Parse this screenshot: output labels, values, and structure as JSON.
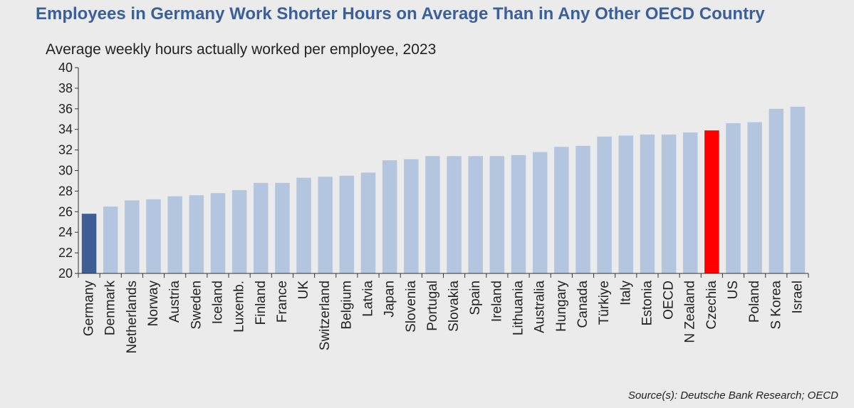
{
  "header": {
    "title": "Employees in Germany Work Shorter Hours on Average Than in Any Other OECD Country"
  },
  "footer": {
    "source": "Source(s): Deutsche Bank Research; OECD"
  },
  "chart_data": {
    "type": "bar",
    "title": "Employees in Germany Work Shorter Hours on Average Than in Any Other OECD Country",
    "subtitle": "Average weekly hours actually worked per employee, 2023",
    "xlabel": "",
    "ylabel": "",
    "ylim": [
      20,
      40
    ],
    "yticks": [
      20,
      22,
      24,
      26,
      28,
      30,
      32,
      34,
      36,
      38,
      40
    ],
    "grid": false,
    "legend": "none",
    "categories": [
      "Germany",
      "Denmark",
      "Netherlands",
      "Norway",
      "Austria",
      "Sweden",
      "Iceland",
      "Luxemb.",
      "Finland",
      "France",
      "UK",
      "Switzerland",
      "Belgium",
      "Latvia",
      "Japan",
      "Slovenia",
      "Portugal",
      "Slovakia",
      "Spain",
      "Ireland",
      "Lithuania",
      "Australia",
      "Hungary",
      "Canada",
      "Türkiye",
      "Italy",
      "Estonia",
      "OECD",
      "N Zealand",
      "Czechia",
      "US",
      "Poland",
      "S Korea",
      "Israel"
    ],
    "values": [
      25.8,
      26.5,
      27.1,
      27.2,
      27.5,
      27.6,
      27.8,
      28.1,
      28.8,
      28.8,
      29.3,
      29.4,
      29.5,
      29.8,
      31.0,
      31.1,
      31.4,
      31.4,
      31.4,
      31.4,
      31.5,
      31.8,
      32.3,
      32.4,
      33.3,
      33.4,
      33.5,
      33.5,
      33.7,
      33.9,
      34.6,
      34.7,
      36.0,
      36.2
    ],
    "colors": {
      "default": "#b4c6df",
      "highlight_germany": "#3d5d94",
      "highlight_czechia": "#ff0000",
      "axis": "#333333"
    },
    "highlights": {
      "Germany": "#3d5d94",
      "Czechia": "#ff0000"
    }
  }
}
